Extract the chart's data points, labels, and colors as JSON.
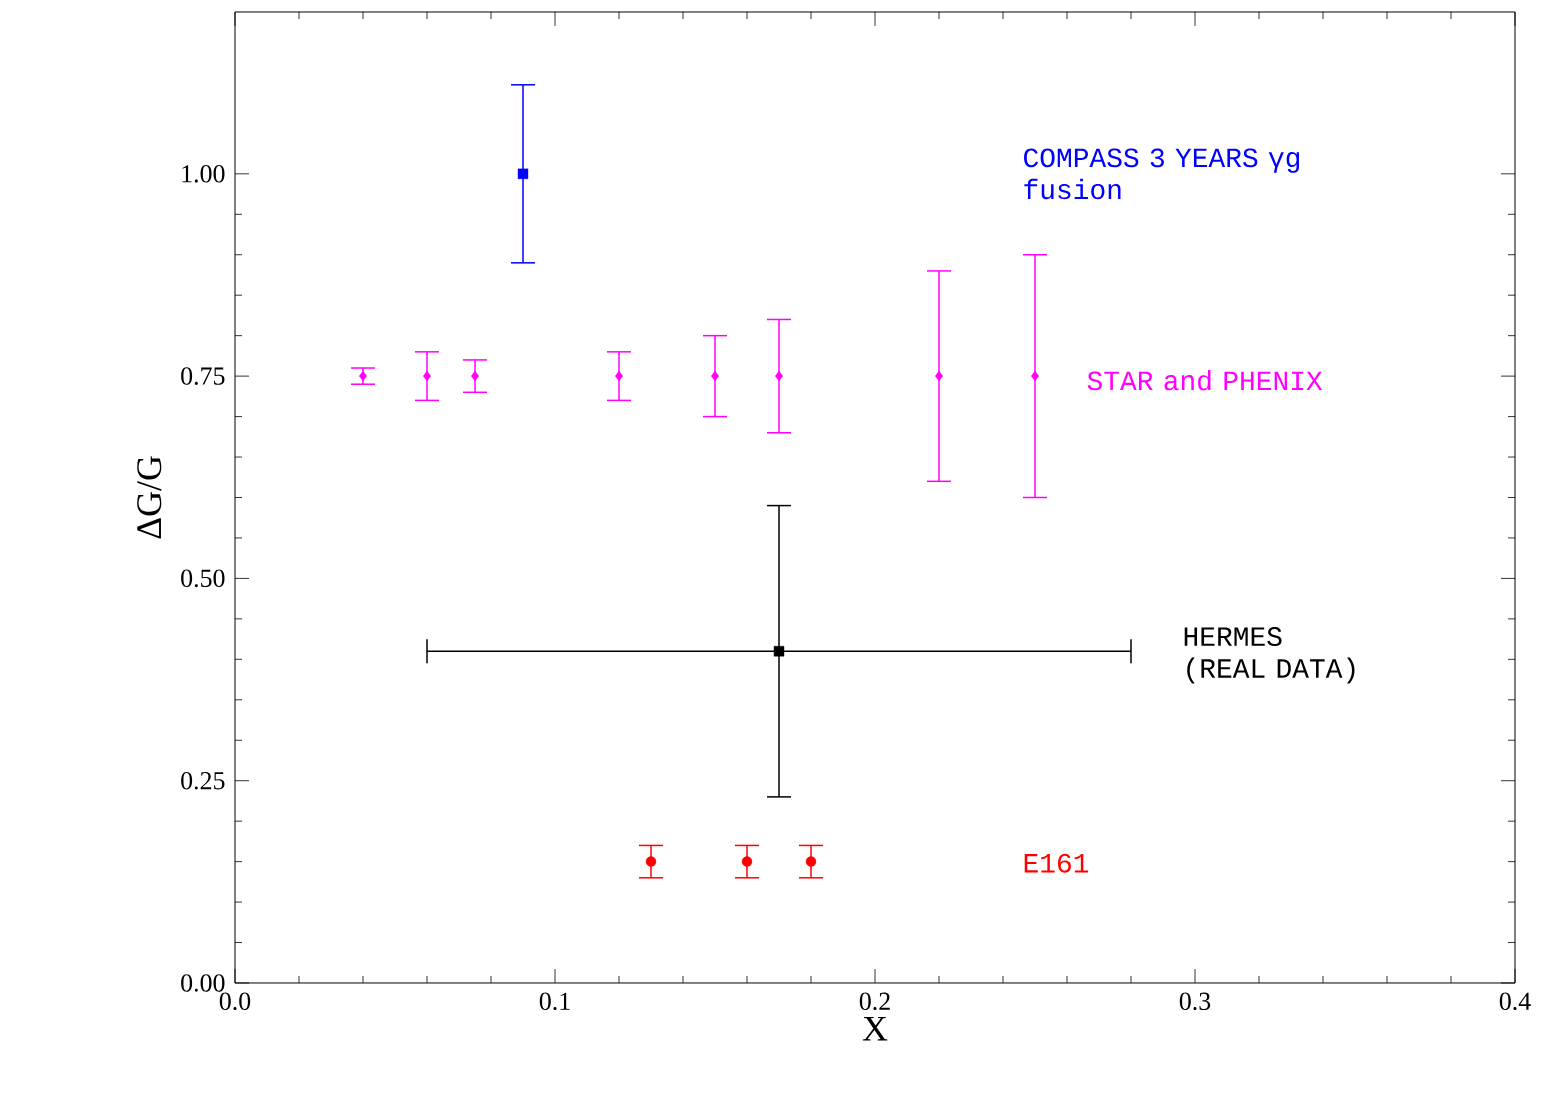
{
  "chart_data": {
    "type": "scatter",
    "xlabel": "X",
    "ylabel": "ΔG/G",
    "xlim": [
      0,
      0.4
    ],
    "ylim": [
      0,
      1.2
    ],
    "xticks": [
      {
        "value": 0,
        "label": "0.0"
      },
      {
        "value": 0.1,
        "label": "0.1"
      },
      {
        "value": 0.2,
        "label": "0.2"
      },
      {
        "value": 0.3,
        "label": "0.3"
      },
      {
        "value": 0.4,
        "label": "0.4"
      }
    ],
    "yticks": [
      {
        "value": 0,
        "label": "0.00"
      },
      {
        "value": 0.25,
        "label": "0.25"
      },
      {
        "value": 0.5,
        "label": "0.50"
      },
      {
        "value": 0.75,
        "label": "0.75"
      },
      {
        "value": 1.0,
        "label": "1.00"
      }
    ],
    "grid": false,
    "series": [
      {
        "name": "COMPASS 3 YEARS γg fusion",
        "color": "#0000ff",
        "marker": "square",
        "x": [
          0.09
        ],
        "values": [
          1.0
        ],
        "errors": [
          0.11
        ]
      },
      {
        "name": "STAR and PHENIX",
        "color": "#ff00ff",
        "marker": "diamond",
        "x": [
          0.04,
          0.06,
          0.075,
          0.12,
          0.15,
          0.17,
          0.22,
          0.25
        ],
        "values": [
          0.75,
          0.75,
          0.75,
          0.75,
          0.75,
          0.75,
          0.75,
          0.75
        ],
        "errors": [
          0.01,
          0.03,
          0.02,
          0.03,
          0.05,
          0.07,
          0.13,
          0.15
        ]
      },
      {
        "name": "HERMES (REAL DATA)",
        "color": "#000000",
        "marker": "square",
        "x": [
          0.17
        ],
        "values": [
          0.41
        ],
        "errors": [
          0.18
        ],
        "xerrors": [
          0.11
        ]
      },
      {
        "name": "E161",
        "color": "#ff0000",
        "marker": "circle",
        "x": [
          0.13,
          0.16,
          0.18
        ],
        "values": [
          0.15,
          0.15,
          0.15
        ],
        "errors": [
          0.02,
          0.02,
          0.02
        ]
      }
    ]
  }
}
